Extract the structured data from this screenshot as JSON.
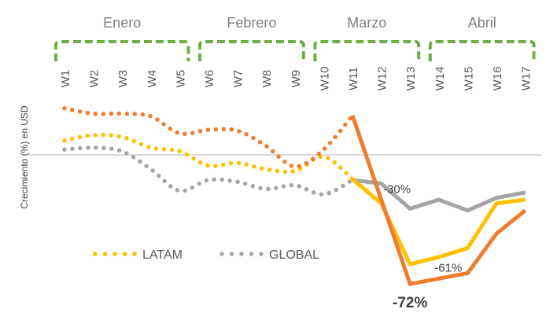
{
  "chart_data": {
    "type": "line",
    "ylabel": "Crecimiento (%) en USD",
    "months": [
      {
        "label": "Enero",
        "weeks": [
          "W1",
          "W2",
          "W3",
          "W4",
          "W5"
        ]
      },
      {
        "label": "Febrero",
        "weeks": [
          "W6",
          "W7",
          "W8",
          "W9"
        ]
      },
      {
        "label": "Marzo",
        "weeks": [
          "W10",
          "W11",
          "W12",
          "W13"
        ]
      },
      {
        "label": "Abril",
        "weeks": [
          "W14",
          "W15",
          "W16",
          "W17"
        ]
      }
    ],
    "categories": [
      "W1",
      "W2",
      "W3",
      "W4",
      "W5",
      "W6",
      "W7",
      "W8",
      "W9",
      "W10",
      "W11",
      "W12",
      "W13",
      "W14",
      "W15",
      "W16",
      "W17"
    ],
    "ylim": [
      -80,
      30
    ],
    "zero_line": true,
    "solid_from_index": 10,
    "series": [
      {
        "name": "",
        "color": "#ED7D31",
        "values": [
          26,
          23,
          23,
          21.5,
          12,
          14,
          13.5,
          5,
          -6.5,
          3,
          22,
          -25,
          -72,
          -69,
          -66,
          -44,
          -31
        ]
      },
      {
        "name": "LATAM",
        "color": "#FFC000",
        "values": [
          8,
          11,
          10,
          4,
          2,
          -6,
          -4.5,
          -8,
          -9,
          -1,
          -13.5,
          -27,
          -61,
          -57,
          -52,
          -27,
          -25
        ]
      },
      {
        "name": "GLOBAL",
        "color": "#A5A5A5",
        "values": [
          3,
          4,
          2,
          -8,
          -20,
          -14,
          -15,
          -19,
          -17,
          -22,
          -14,
          -16,
          -30,
          -25,
          -31,
          -24,
          -21
        ]
      }
    ],
    "annotations": [
      {
        "text": "-30%",
        "x": "W12",
        "y": -19
      },
      {
        "text": "-61%",
        "x": "W14",
        "y": -63
      },
      {
        "text": "-72%",
        "x": "W13",
        "y": -83
      }
    ],
    "legend": [
      {
        "label": "LATAM",
        "color": "#FFC000"
      },
      {
        "label": "GLOBAL",
        "color": "#A5A5A5"
      }
    ],
    "legend_position": "bottom-left",
    "bracket_color": "#70AD47"
  }
}
